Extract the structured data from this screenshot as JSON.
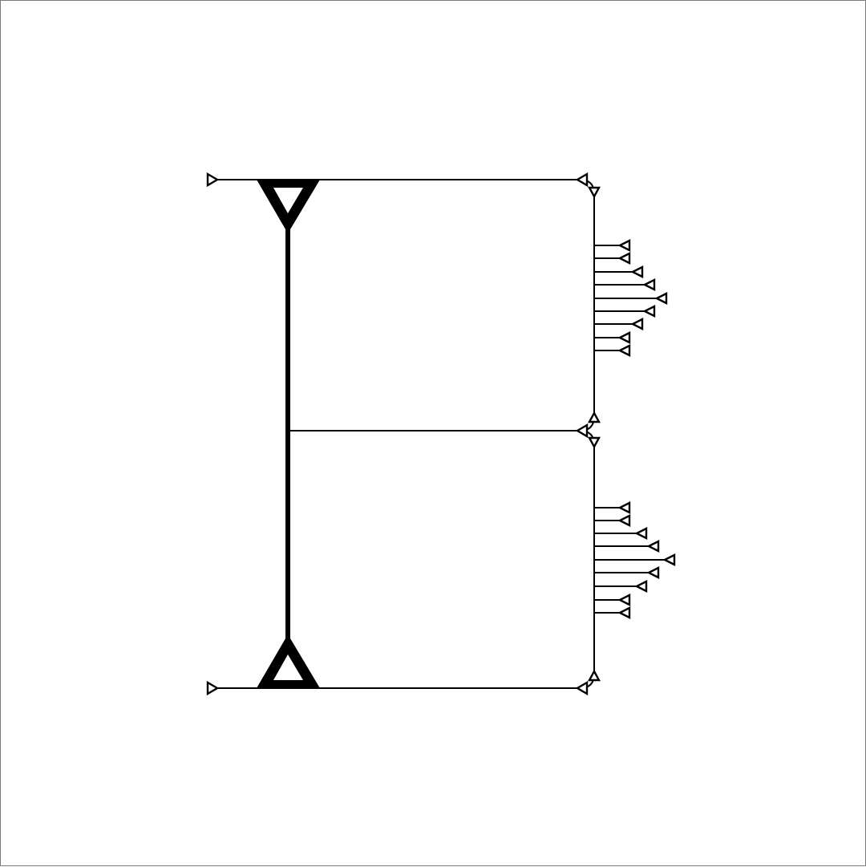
{
  "diagram": {
    "kind": "schematic",
    "stroke_color": "#000000",
    "background_color": "#ffffff",
    "border_color": "#7a7a7a",
    "branch_groups": [
      {
        "name": "upper",
        "stub_count": 9
      },
      {
        "name": "lower",
        "stub_count": 9
      }
    ]
  }
}
